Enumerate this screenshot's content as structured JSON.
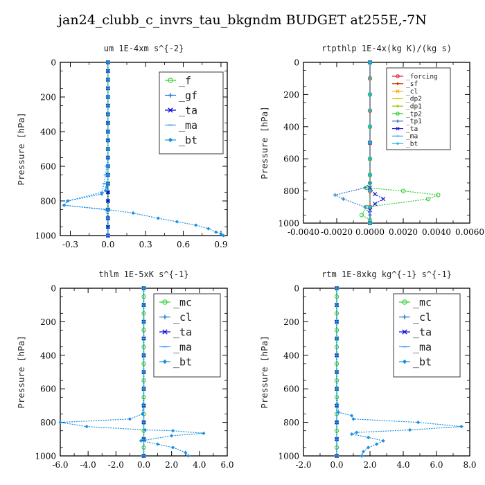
{
  "figure_title": "jan24_clubb_c_invrs_tau_bkgndm  BUDGET at255E,-7N",
  "chart_data": [
    {
      "type": "line",
      "title": "um  1E-4xm s^{-2}",
      "ylabel": "Pressure [hPa]",
      "xlabel": "",
      "xlim": [
        -0.38,
        0.95
      ],
      "ylim": [
        1000,
        0
      ],
      "xticks": [
        -0.3,
        0.0,
        0.3,
        0.6,
        0.9
      ],
      "xtick_labels": [
        "-0.3",
        "0.0",
        "0.3",
        "0.6",
        "0.9"
      ],
      "yticks": [
        0,
        200,
        400,
        600,
        800,
        1000
      ],
      "legend_position": "top-right",
      "series": [
        {
          "name": "_f",
          "color": "#33cc33",
          "x": [
            0,
            0,
            0,
            0,
            0,
            0,
            0,
            0,
            0,
            0,
            0,
            0,
            0,
            0,
            0,
            0,
            0,
            0,
            0,
            0,
            0
          ],
          "y": [
            0,
            50,
            100,
            150,
            200,
            250,
            300,
            350,
            400,
            450,
            500,
            550,
            600,
            650,
            700,
            750,
            800,
            850,
            900,
            950,
            1000
          ]
        },
        {
          "name": "_gf",
          "color": "#1f77d4",
          "x": [
            0,
            0,
            0,
            0,
            0,
            0,
            0,
            0,
            0,
            0,
            0,
            0,
            0,
            0,
            0,
            0,
            0,
            0,
            0,
            0,
            0
          ],
          "y": [
            0,
            50,
            100,
            150,
            200,
            250,
            300,
            350,
            400,
            450,
            500,
            550,
            600,
            650,
            700,
            750,
            800,
            850,
            900,
            950,
            1000
          ]
        },
        {
          "name": "_ta",
          "color": "#0000dd",
          "x": [
            0,
            0,
            0,
            0,
            0,
            0,
            0,
            0,
            0,
            0,
            0,
            0,
            0,
            0,
            0,
            0,
            0,
            0,
            0,
            0,
            0
          ],
          "y": [
            0,
            50,
            100,
            150,
            200,
            250,
            300,
            350,
            400,
            450,
            500,
            550,
            600,
            650,
            700,
            750,
            800,
            850,
            900,
            950,
            1000
          ]
        },
        {
          "name": "_ma",
          "color": "#3399ff",
          "x": [
            0,
            0,
            0,
            0,
            0,
            0,
            0,
            0,
            0,
            0,
            0,
            0,
            -0.01,
            -0.02,
            -0.03,
            -0.05,
            -0.32,
            -0.35,
            -0.02,
            0,
            0
          ],
          "y": [
            0,
            50,
            100,
            150,
            200,
            250,
            300,
            350,
            400,
            450,
            500,
            550,
            600,
            650,
            700,
            750,
            800,
            825,
            850,
            900,
            1000
          ]
        },
        {
          "name": "_bt",
          "color": "#1a8fe0",
          "x": [
            0,
            0,
            0,
            0,
            0,
            0,
            0,
            0,
            0,
            -0.01,
            -0.02,
            -0.05,
            -0.32,
            -0.35,
            0,
            0.2,
            0.4,
            0.55,
            0.7,
            0.8,
            0.86,
            0.9,
            0.92
          ],
          "y": [
            0,
            100,
            200,
            300,
            400,
            500,
            600,
            650,
            700,
            720,
            740,
            760,
            800,
            825,
            850,
            870,
            900,
            920,
            940,
            960,
            980,
            990,
            1000
          ]
        }
      ]
    },
    {
      "type": "line",
      "title": "rtpthlp  1E-4x(kg K)/(kg s)",
      "ylabel": "Pressure [hPa]",
      "xlabel": "",
      "xlim": [
        -0.004,
        0.006
      ],
      "ylim": [
        1000,
        0
      ],
      "xticks": [
        -0.004,
        -0.002,
        0.0,
        0.002,
        0.004,
        0.006
      ],
      "xtick_labels": [
        "-0.0040",
        "-0.0020",
        "0.0000",
        "0.0020",
        "0.0040",
        "0.0060"
      ],
      "yticks": [
        0,
        200,
        400,
        600,
        800,
        1000
      ],
      "legend_position": "top-right",
      "series": [
        {
          "name": "_forcing",
          "color": "#dd2222",
          "x": [
            0,
            0,
            0,
            0,
            0,
            0,
            0,
            0,
            0,
            0,
            0
          ],
          "y": [
            0,
            100,
            200,
            300,
            400,
            500,
            600,
            700,
            800,
            900,
            1000
          ]
        },
        {
          "name": "_sf",
          "color": "#cc3300",
          "x": [
            0,
            0,
            0,
            0,
            0,
            0,
            0,
            0,
            0,
            0,
            0
          ],
          "y": [
            0,
            100,
            200,
            300,
            400,
            500,
            600,
            700,
            800,
            900,
            1000
          ]
        },
        {
          "name": "_cl",
          "color": "#ffaa00",
          "x": [
            0,
            0,
            0,
            0,
            0,
            0,
            0,
            0,
            0,
            0,
            0
          ],
          "y": [
            0,
            100,
            200,
            300,
            400,
            500,
            600,
            700,
            800,
            900,
            1000
          ]
        },
        {
          "name": "_dp2",
          "color": "#cccc00",
          "x": [
            0,
            0,
            0,
            0,
            0,
            0,
            0,
            0,
            0,
            0,
            0
          ],
          "y": [
            0,
            100,
            200,
            300,
            400,
            500,
            600,
            700,
            800,
            900,
            1000
          ]
        },
        {
          "name": "_dp1",
          "color": "#88cc00",
          "x": [
            0,
            0,
            0,
            0,
            0,
            0,
            0,
            0,
            0,
            0,
            0
          ],
          "y": [
            0,
            100,
            200,
            300,
            400,
            500,
            600,
            700,
            800,
            900,
            1000
          ]
        },
        {
          "name": "_tp2",
          "color": "#33cc33",
          "x": [
            0,
            0,
            0,
            0,
            0,
            0,
            -0.0002,
            0.002,
            0.0041,
            0.0035,
            -0.0002,
            -0.0005,
            0,
            0
          ],
          "y": [
            0,
            200,
            400,
            600,
            700,
            750,
            780,
            800,
            825,
            850,
            900,
            950,
            980,
            1000
          ]
        },
        {
          "name": "_tp1",
          "color": "#2277cc",
          "x": [
            0,
            0,
            0,
            0,
            -0.0003,
            -0.0021,
            -0.0016,
            -0.0003,
            0,
            0
          ],
          "y": [
            0,
            300,
            600,
            750,
            780,
            825,
            850,
            900,
            950,
            1000
          ]
        },
        {
          "name": "_ta",
          "color": "#2222cc",
          "x": [
            0,
            0,
            0,
            0.0003,
            0.0008,
            0.0003,
            0,
            0
          ],
          "y": [
            0,
            500,
            780,
            820,
            850,
            880,
            920,
            1000
          ]
        },
        {
          "name": "_ma",
          "color": "#3399ff",
          "x": [
            0,
            0,
            0,
            0,
            0,
            0,
            0,
            0,
            0,
            0,
            0
          ],
          "y": [
            0,
            100,
            200,
            300,
            400,
            500,
            600,
            700,
            800,
            900,
            1000
          ]
        },
        {
          "name": "_bt",
          "color": "#11bbee",
          "x": [
            0,
            0,
            0,
            0,
            0,
            0,
            0,
            0,
            0,
            0,
            0
          ],
          "y": [
            0,
            100,
            200,
            300,
            400,
            500,
            600,
            700,
            800,
            900,
            1000
          ]
        }
      ]
    },
    {
      "type": "line",
      "title": "thlm  1E-5xK s^{-1}",
      "ylabel": "Pressure [hPa]",
      "xlabel": "",
      "xlim": [
        -6.0,
        6.0
      ],
      "ylim": [
        1000,
        0
      ],
      "xticks": [
        -6.0,
        -4.0,
        -2.0,
        0.0,
        2.0,
        4.0,
        6.0
      ],
      "xtick_labels": [
        "-6.0",
        "-4.0",
        "-2.0",
        "0.0",
        "2.0",
        "4.0",
        "6.0"
      ],
      "yticks": [
        0,
        200,
        400,
        600,
        800,
        1000
      ],
      "legend_position": "top-right",
      "series": [
        {
          "name": "_mc",
          "color": "#33cc33",
          "x": [
            0,
            0,
            0,
            0,
            0,
            0,
            0,
            0,
            0,
            0,
            0,
            0,
            0,
            0,
            0,
            0,
            0,
            0,
            0,
            0,
            0
          ],
          "y": [
            0,
            50,
            100,
            150,
            200,
            250,
            300,
            350,
            400,
            450,
            500,
            550,
            600,
            650,
            700,
            750,
            800,
            850,
            900,
            950,
            1000
          ]
        },
        {
          "name": "_cl",
          "color": "#1f77d4",
          "x": [
            0,
            0,
            0,
            0,
            0,
            0,
            0,
            0,
            0,
            0,
            0
          ],
          "y": [
            0,
            100,
            200,
            300,
            400,
            500,
            600,
            700,
            800,
            900,
            1000
          ]
        },
        {
          "name": "_ta",
          "color": "#0000dd",
          "x": [
            0,
            0,
            0,
            0,
            0,
            0,
            0,
            0,
            0,
            0,
            0
          ],
          "y": [
            0,
            100,
            200,
            300,
            400,
            500,
            600,
            700,
            800,
            900,
            1000
          ]
        },
        {
          "name": "_ma",
          "color": "#3399ff",
          "x": [
            0,
            0,
            0,
            0,
            0,
            0,
            0,
            0,
            0,
            0,
            0
          ],
          "y": [
            0,
            100,
            200,
            300,
            400,
            500,
            600,
            700,
            800,
            900,
            1000
          ]
        },
        {
          "name": "_bt",
          "color": "#1a8fe0",
          "x": [
            0,
            0,
            0,
            0,
            -0.1,
            -1.0,
            -6.0,
            -4.1,
            0.1,
            2.1,
            4.3,
            2.0,
            -0.2,
            1.0,
            2.1,
            3.0,
            3.2
          ],
          "y": [
            0,
            200,
            400,
            600,
            750,
            780,
            800,
            825,
            845,
            850,
            865,
            880,
            910,
            930,
            950,
            980,
            1000
          ]
        }
      ]
    },
    {
      "type": "line",
      "title": "rtm  1E-8xkg kg^{-1} s^{-1}",
      "ylabel": "Pressure [hPa]",
      "xlabel": "",
      "xlim": [
        -2.0,
        8.0
      ],
      "ylim": [
        1000,
        0
      ],
      "xticks": [
        -2.0,
        0.0,
        2.0,
        4.0,
        6.0,
        8.0
      ],
      "xtick_labels": [
        "-2.0",
        "0.0",
        "2.0",
        "4.0",
        "6.0",
        "8.0"
      ],
      "yticks": [
        0,
        200,
        400,
        600,
        800,
        1000
      ],
      "legend_position": "top-right",
      "series": [
        {
          "name": "_mc",
          "color": "#33cc33",
          "x": [
            0,
            0,
            0,
            0,
            0,
            0,
            0,
            0,
            0,
            0,
            0,
            0,
            0,
            0,
            0,
            0,
            0,
            0,
            0,
            0,
            0
          ],
          "y": [
            0,
            50,
            100,
            150,
            200,
            250,
            300,
            350,
            400,
            450,
            500,
            550,
            600,
            650,
            700,
            750,
            800,
            850,
            900,
            950,
            1000
          ]
        },
        {
          "name": "_cl",
          "color": "#1f77d4",
          "x": [
            0,
            0,
            0,
            0,
            0,
            0,
            0,
            0,
            0,
            0,
            0
          ],
          "y": [
            0,
            100,
            200,
            300,
            400,
            500,
            600,
            700,
            800,
            900,
            1000
          ]
        },
        {
          "name": "_ta",
          "color": "#0000dd",
          "x": [
            0,
            0,
            0,
            0,
            0,
            0,
            0,
            0,
            0,
            0,
            0
          ],
          "y": [
            0,
            100,
            200,
            300,
            400,
            500,
            600,
            700,
            800,
            900,
            1000
          ]
        },
        {
          "name": "_ma",
          "color": "#3399ff",
          "x": [
            0,
            0,
            0,
            0,
            0,
            0,
            0,
            0,
            0,
            0,
            0
          ],
          "y": [
            0,
            100,
            200,
            300,
            400,
            500,
            600,
            700,
            800,
            900,
            1000
          ]
        },
        {
          "name": "_bt",
          "color": "#1a8fe0",
          "x": [
            0,
            0,
            0,
            0.1,
            0.9,
            1.0,
            4.9,
            7.5,
            4.4,
            1.2,
            0.9,
            1.9,
            2.8,
            2.4,
            1.9,
            1.6,
            1.5
          ],
          "y": [
            0,
            300,
            600,
            740,
            760,
            780,
            800,
            825,
            845,
            860,
            870,
            890,
            910,
            930,
            950,
            975,
            1000
          ]
        }
      ]
    }
  ]
}
